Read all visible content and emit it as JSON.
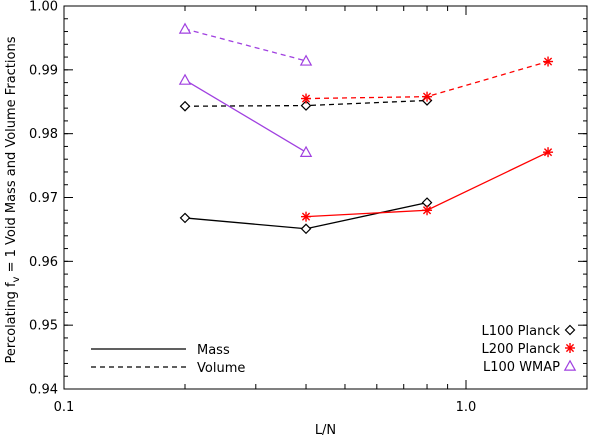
{
  "chart_data": {
    "type": "line",
    "xlabel": "L/N",
    "ylabel": "Percolating f",
    "ylabel_sub": "v",
    "ylabel_rest": " = 1 Void Mass and Volume Fractions",
    "xscale": "log",
    "xlim": [
      0.1,
      2.0
    ],
    "ylim": [
      0.94,
      1.0
    ],
    "x_ticks": [
      {
        "value": 0.1,
        "label": "0.1"
      },
      {
        "value": 1.0,
        "label": "1.0"
      }
    ],
    "y_ticks": [
      {
        "value": 0.94,
        "label": "0.94"
      },
      {
        "value": 0.95,
        "label": "0.95"
      },
      {
        "value": 0.96,
        "label": "0.96"
      },
      {
        "value": 0.97,
        "label": "0.97"
      },
      {
        "value": 0.98,
        "label": "0.98"
      },
      {
        "value": 0.99,
        "label": "0.99"
      },
      {
        "value": 1.0,
        "label": "1.00"
      }
    ],
    "grid": false,
    "series": [
      {
        "name": "L100 Planck",
        "quantity": "Mass",
        "color": "#000000",
        "marker": "diamond",
        "dash": false,
        "x": [
          0.2,
          0.4,
          0.8
        ],
        "y": [
          0.9668,
          0.9651,
          0.9692
        ]
      },
      {
        "name": "L100 Planck",
        "quantity": "Volume",
        "color": "#000000",
        "marker": "diamond",
        "dash": true,
        "x": [
          0.2,
          0.4,
          0.8
        ],
        "y": [
          0.9843,
          0.9844,
          0.9852
        ]
      },
      {
        "name": "L200 Planck",
        "quantity": "Mass",
        "color": "#ff0000",
        "marker": "asterisk",
        "dash": false,
        "x": [
          0.4,
          0.8,
          1.6
        ],
        "y": [
          0.967,
          0.968,
          0.9771
        ]
      },
      {
        "name": "L200 Planck",
        "quantity": "Volume",
        "color": "#ff0000",
        "marker": "asterisk",
        "dash": true,
        "x": [
          0.4,
          0.8,
          1.6
        ],
        "y": [
          0.9855,
          0.9858,
          0.9913
        ]
      },
      {
        "name": "L100 WMAP",
        "quantity": "Mass",
        "color": "#a040e0",
        "marker": "triangle",
        "dash": false,
        "x": [
          0.2,
          0.4
        ],
        "y": [
          0.9884,
          0.9771
        ]
      },
      {
        "name": "L100 WMAP",
        "quantity": "Volume",
        "color": "#a040e0",
        "marker": "triangle",
        "dash": true,
        "x": [
          0.2,
          0.4
        ],
        "y": [
          0.9964,
          0.9914
        ]
      }
    ],
    "legend_style": {
      "placement": "bottom-left",
      "items": [
        {
          "label": "Mass",
          "dash": false
        },
        {
          "label": "Volume",
          "dash": true
        }
      ]
    },
    "legend_runs": {
      "placement": "bottom-right",
      "items": [
        {
          "label": "L100 Planck",
          "color": "#000000",
          "marker": "diamond"
        },
        {
          "label": "L200 Planck",
          "color": "#ff0000",
          "marker": "asterisk"
        },
        {
          "label": "L100 WMAP",
          "color": "#a040e0",
          "marker": "triangle"
        }
      ]
    }
  }
}
